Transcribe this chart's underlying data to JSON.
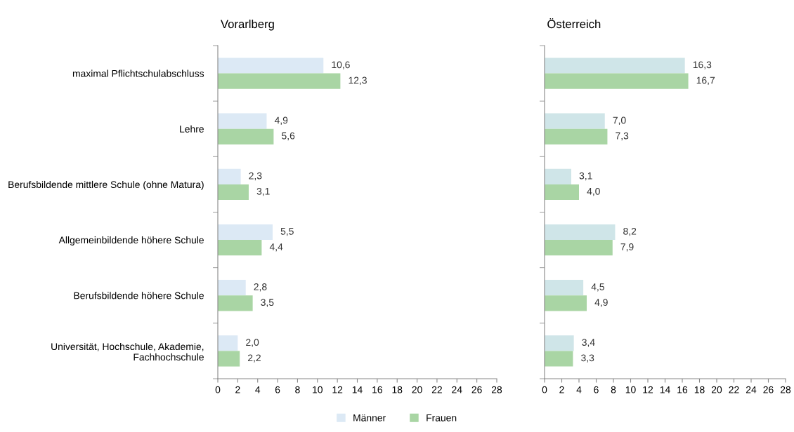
{
  "chart_data": [
    {
      "type": "bar",
      "title": "Vorarlberg",
      "orientation": "horizontal",
      "categories": [
        "maximal Pflichtschulabschluss",
        "Lehre",
        "Berufsbildende mittlere Schule (ohne Matura)",
        "Allgemeinbildende höhere Schule",
        "Berufsbildende höhere Schule",
        "Universität, Hochschule, Akademie, Fachhochschule"
      ],
      "xlim": [
        0,
        28
      ],
      "xticks": [
        0,
        2,
        4,
        6,
        8,
        10,
        12,
        14,
        16,
        18,
        20,
        22,
        24,
        26,
        28
      ],
      "grid": false,
      "legend": "bottom",
      "series": [
        {
          "name": "Männer",
          "color": "#dce9f5",
          "values": [
            10.6,
            4.9,
            2.3,
            5.5,
            2.8,
            2.0
          ],
          "value_labels": [
            "10,6",
            "4,9",
            "2,3",
            "5,5",
            "2,8",
            "2,0"
          ]
        },
        {
          "name": "Frauen",
          "color": "#a9d5a4",
          "values": [
            12.3,
            5.6,
            3.1,
            4.4,
            3.5,
            2.2
          ],
          "value_labels": [
            "12,3",
            "5,6",
            "3,1",
            "4,4",
            "3,5",
            "2,2"
          ]
        }
      ]
    },
    {
      "type": "bar",
      "title": "Österreich",
      "orientation": "horizontal",
      "categories": [
        null,
        null,
        null,
        null,
        null,
        null
      ],
      "xlim": [
        0,
        28
      ],
      "xticks": [
        0,
        2,
        4,
        6,
        8,
        10,
        12,
        14,
        16,
        18,
        20,
        22,
        24,
        26,
        28
      ],
      "grid": false,
      "tick_labels": "x",
      "series": [
        {
          "color": "#cfe5e8",
          "values": [
            16.3,
            7.0,
            3.1,
            8.2,
            4.5,
            3.4
          ],
          "value_labels": [
            "16,3",
            "7,0",
            "3,1",
            "8,2",
            "4,5",
            "3,4"
          ]
        },
        {
          "color": "#a9d5a4",
          "values": [
            16.7,
            7.3,
            4.0,
            7.9,
            4.9,
            3.3
          ],
          "value_labels": [
            "16,7",
            "7,3",
            "4,0",
            "7,9",
            "4,9",
            "3,3"
          ]
        }
      ]
    }
  ]
}
